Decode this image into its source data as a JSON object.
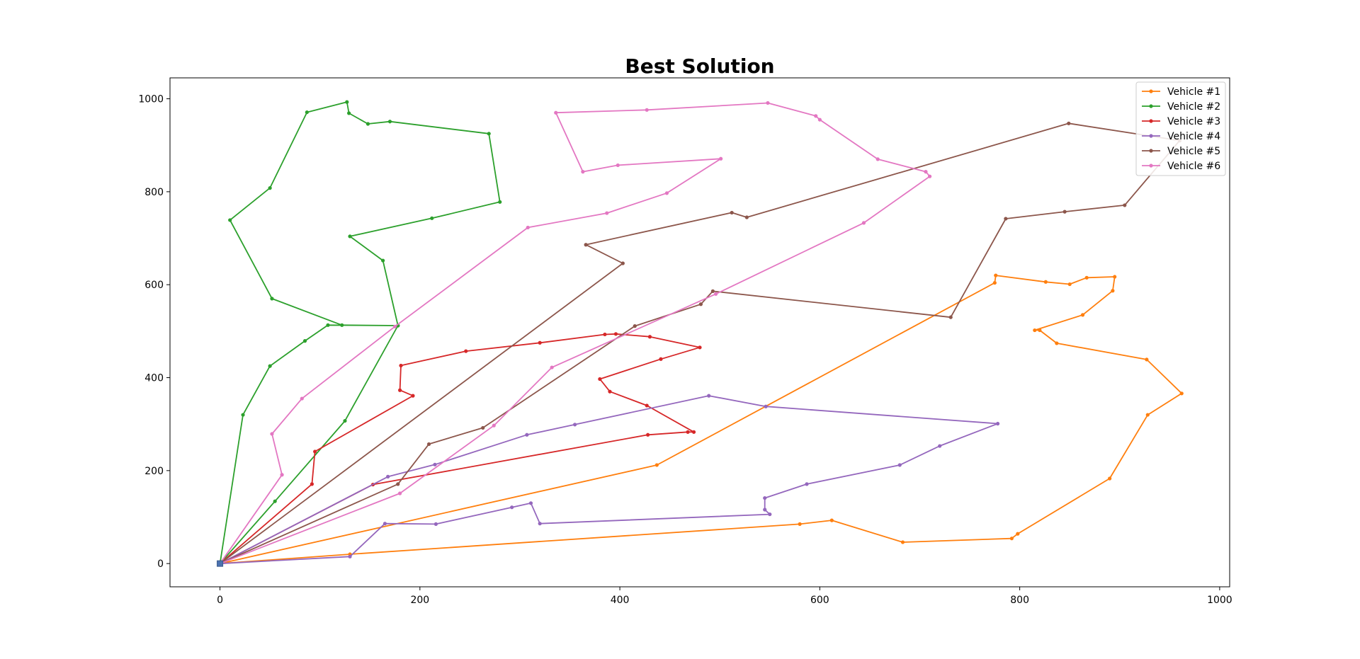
{
  "chart_data": {
    "type": "line",
    "title": "Best Solution",
    "xlabel": "",
    "ylabel": "",
    "xlim": [
      -50,
      1010
    ],
    "ylim": [
      -50,
      1045
    ],
    "xticks": [
      0,
      200,
      400,
      600,
      800,
      1000
    ],
    "yticks": [
      0,
      200,
      400,
      600,
      800,
      1000
    ],
    "xtick_labels": [
      "0",
      "200",
      "400",
      "600",
      "800",
      "1000"
    ],
    "ytick_labels": [
      "0",
      "200",
      "400",
      "600",
      "800",
      "1000"
    ],
    "grid": false,
    "legend_position": "top-right",
    "depot": {
      "x": 0,
      "y": 0,
      "color": "#4c72b0"
    },
    "series": [
      {
        "name": "Vehicle #1",
        "color": "#ff7f0e",
        "x": [
          0,
          130,
          580,
          612,
          683,
          792,
          798,
          890,
          928,
          962,
          927,
          837,
          820,
          815,
          863,
          893,
          895,
          867,
          850,
          826,
          776,
          775,
          437,
          0
        ],
        "y": [
          0,
          20,
          85,
          93,
          46,
          54,
          64,
          183,
          320,
          366,
          439,
          474,
          502,
          502,
          535,
          587,
          617,
          615,
          601,
          606,
          620,
          604,
          212,
          0
        ]
      },
      {
        "name": "Vehicle #2",
        "color": "#2ca02c",
        "x": [
          0,
          23,
          50,
          85,
          108,
          178,
          163,
          130,
          212,
          280,
          269,
          170,
          148,
          129,
          127,
          87,
          50,
          10,
          52,
          122,
          178,
          125,
          55,
          0
        ],
        "y": [
          0,
          320,
          425,
          479,
          513,
          512,
          652,
          704,
          743,
          778,
          925,
          951,
          946,
          969,
          993,
          971,
          808,
          739,
          570,
          513,
          512,
          307,
          134,
          0
        ]
      },
      {
        "name": "Vehicle #3",
        "color": "#d62728",
        "x": [
          0,
          92,
          95,
          193,
          180,
          181,
          246,
          320,
          385,
          396,
          430,
          480,
          441,
          380,
          390,
          427,
          474,
          468,
          428,
          153,
          0
        ],
        "y": [
          0,
          171,
          241,
          361,
          373,
          426,
          457,
          475,
          493,
          494,
          488,
          465,
          440,
          397,
          370,
          340,
          283,
          283,
          277,
          170,
          0
        ]
      },
      {
        "name": "Vehicle #4",
        "color": "#9467bd",
        "x": [
          0,
          130,
          165,
          216,
          292,
          311,
          320,
          550,
          545,
          545,
          587,
          680,
          720,
          778,
          546,
          489,
          355,
          307,
          215,
          168,
          0
        ],
        "y": [
          0,
          15,
          86,
          85,
          121,
          130,
          86,
          106,
          116,
          141,
          171,
          212,
          253,
          301,
          338,
          361,
          299,
          277,
          213,
          187,
          0
        ]
      },
      {
        "name": "Vehicle #5",
        "color": "#8c564b",
        "x": [
          0,
          403,
          366,
          512,
          527,
          849,
          960,
          905,
          845,
          786,
          731,
          493,
          481,
          415,
          263,
          209,
          178,
          0
        ],
        "y": [
          0,
          646,
          686,
          755,
          745,
          947,
          910,
          771,
          757,
          742,
          530,
          586,
          558,
          511,
          292,
          257,
          171,
          0
        ]
      },
      {
        "name": "Vehicle #6",
        "color": "#e377c2",
        "x": [
          0,
          62,
          52,
          82,
          175,
          308,
          387,
          447,
          501,
          398,
          363,
          336,
          427,
          548,
          596,
          600,
          658,
          706,
          710,
          644,
          496,
          332,
          274,
          180,
          0
        ],
        "y": [
          0,
          191,
          279,
          355,
          510,
          723,
          754,
          797,
          871,
          857,
          843,
          970,
          976,
          991,
          963,
          955,
          870,
          843,
          833,
          733,
          580,
          422,
          297,
          151,
          0
        ]
      }
    ]
  }
}
